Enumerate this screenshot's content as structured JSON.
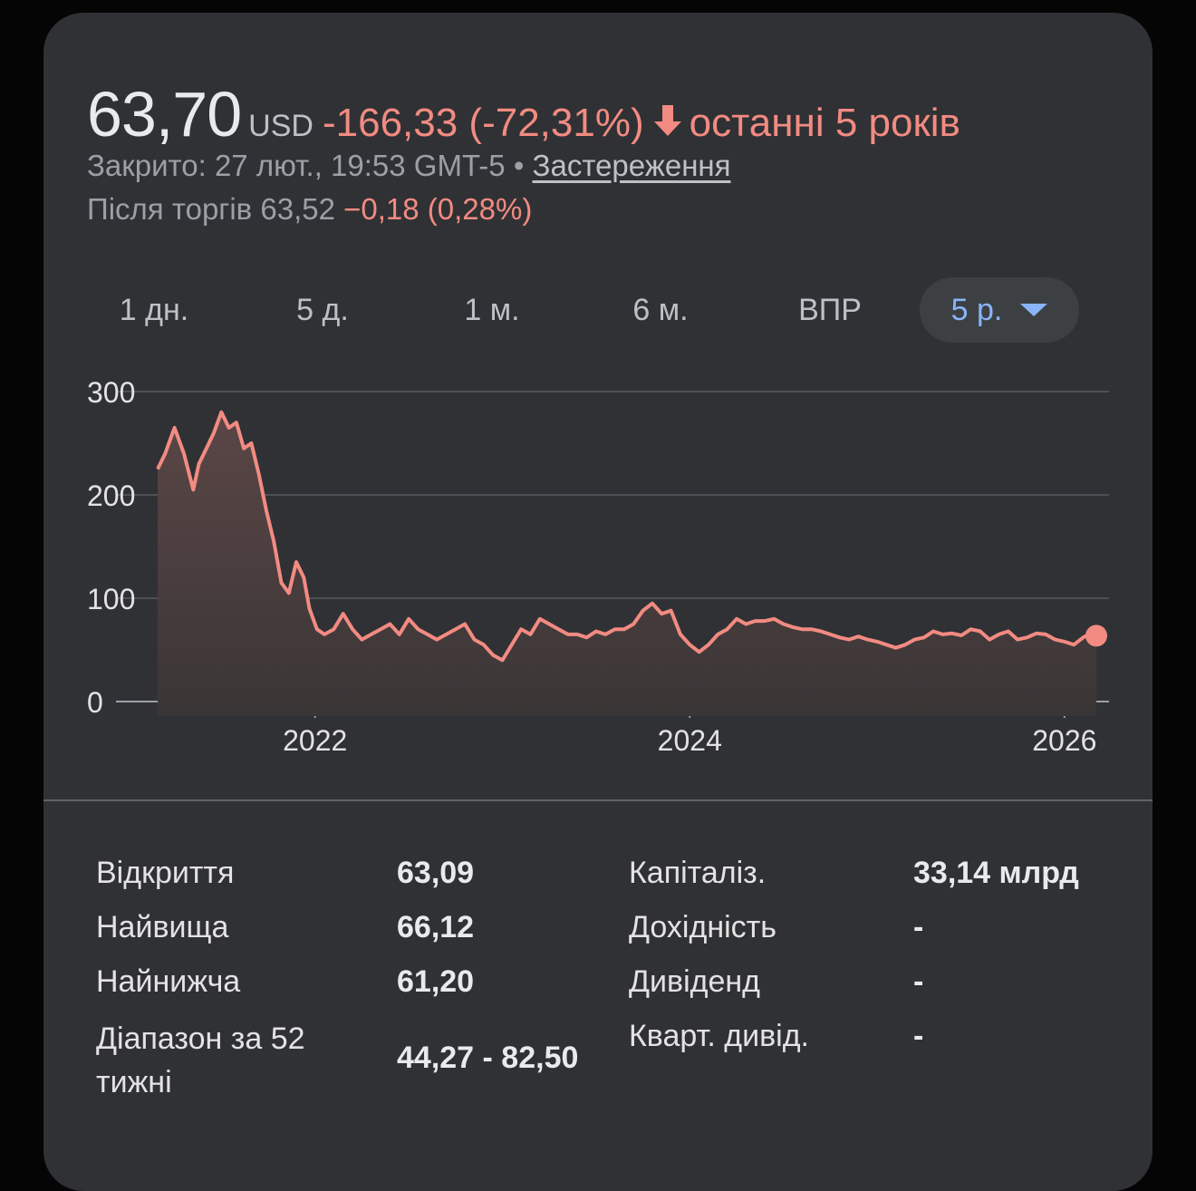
{
  "quote": {
    "price": "63,70",
    "currency": "USD",
    "change": "-166,33 (-72,31%)",
    "period": "останні 5 років",
    "closed_text": "Закрито: 27 лют., 19:53 GMT-5 • ",
    "disclaimer": "Застереження",
    "after_label": "Після торгів 63,52 ",
    "after_change": "−0,18 (0,28%)"
  },
  "ranges": [
    "1 дн.",
    "5 д.",
    "1 м.",
    "6 м.",
    "ВПР",
    "5 р."
  ],
  "active_range": "5 р.",
  "colors": {
    "line": "#f28b82",
    "positive_accent": "#8ab4f8",
    "card_bg": "#303134"
  },
  "chart_data": {
    "type": "area",
    "title": "",
    "xlabel": "",
    "ylabel": "",
    "ylim": [
      0,
      300
    ],
    "yticks": [
      "300",
      "200",
      "100",
      "0"
    ],
    "yticks_values": [
      300,
      200,
      100,
      0
    ],
    "xticks": [
      "2022",
      "2024",
      "2026"
    ],
    "xticks_values": [
      2022.0,
      2024.0,
      2026.0
    ],
    "xlim": [
      2021.16,
      2026.17
    ],
    "grid": true,
    "series": [
      {
        "x": [
          2021.16,
          2021.2,
          2021.25,
          2021.3,
          2021.35,
          2021.38,
          2021.42,
          2021.46,
          2021.5,
          2021.54,
          2021.58,
          2021.62,
          2021.66,
          2021.7,
          2021.74,
          2021.78,
          2021.82,
          2021.86,
          2021.9,
          2021.94,
          2021.97,
          2022.01,
          2022.05,
          2022.1,
          2022.15,
          2022.2,
          2022.25,
          2022.3,
          2022.35,
          2022.4,
          2022.45,
          2022.5,
          2022.55,
          2022.6,
          2022.65,
          2022.7,
          2022.75,
          2022.8,
          2022.85,
          2022.9,
          2022.95,
          2023.0,
          2023.05,
          2023.1,
          2023.15,
          2023.2,
          2023.25,
          2023.3,
          2023.35,
          2023.4,
          2023.45,
          2023.5,
          2023.55,
          2023.6,
          2023.65,
          2023.7,
          2023.75,
          2023.8,
          2023.85,
          2023.9,
          2023.95,
          2024.0,
          2024.05,
          2024.1,
          2024.15,
          2024.2,
          2024.25,
          2024.3,
          2024.35,
          2024.4,
          2024.45,
          2024.5,
          2024.55,
          2024.6,
          2024.65,
          2024.7,
          2024.75,
          2024.8,
          2024.85,
          2024.9,
          2024.95,
          2025.0,
          2025.05,
          2025.1,
          2025.15,
          2025.2,
          2025.25,
          2025.3,
          2025.35,
          2025.4,
          2025.45,
          2025.5,
          2025.55,
          2025.6,
          2025.65,
          2025.7,
          2025.75,
          2025.8,
          2025.85,
          2025.9,
          2025.95,
          2026.0,
          2026.05,
          2026.1,
          2026.13,
          2026.17
        ],
        "values": [
          225,
          240,
          265,
          240,
          205,
          230,
          245,
          260,
          280,
          265,
          270,
          245,
          250,
          220,
          185,
          155,
          115,
          105,
          135,
          120,
          90,
          70,
          65,
          70,
          85,
          70,
          60,
          65,
          70,
          75,
          65,
          80,
          70,
          65,
          60,
          65,
          70,
          75,
          60,
          55,
          45,
          40,
          55,
          70,
          65,
          80,
          75,
          70,
          65,
          65,
          62,
          68,
          65,
          70,
          70,
          75,
          88,
          95,
          85,
          88,
          65,
          55,
          48,
          55,
          65,
          70,
          80,
          75,
          78,
          78,
          80,
          75,
          72,
          70,
          70,
          68,
          65,
          62,
          60,
          63,
          60,
          58,
          55,
          52,
          55,
          60,
          62,
          68,
          65,
          66,
          64,
          70,
          68,
          60,
          65,
          68,
          60,
          62,
          66,
          65,
          60,
          58,
          55,
          62,
          65,
          63.7
        ]
      }
    ]
  },
  "stats": {
    "left": [
      {
        "label": "Відкриття",
        "value": "63,09"
      },
      {
        "label": "Найвища",
        "value": "66,12"
      },
      {
        "label": "Найнижча",
        "value": "61,20"
      },
      {
        "label": "Діапазон за 52 тижні",
        "value": "44,27 - 82,50"
      }
    ],
    "right": [
      {
        "label": "Капіталіз.",
        "value": "33,14 млрд"
      },
      {
        "label": "Дохідність",
        "value": "-"
      },
      {
        "label": "Дивіденд",
        "value": "-"
      },
      {
        "label": "Кварт. дивід.",
        "value": "-"
      }
    ]
  }
}
